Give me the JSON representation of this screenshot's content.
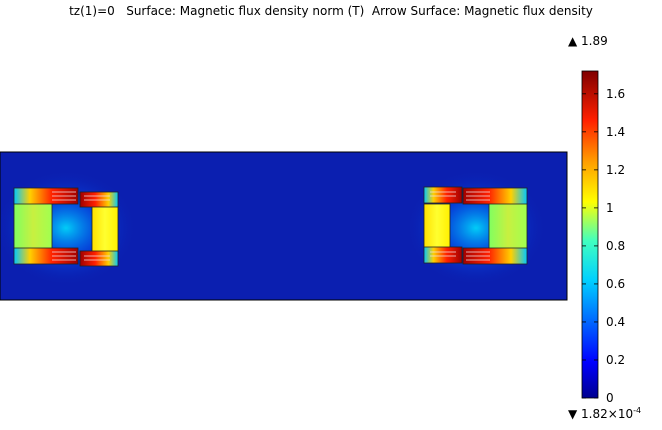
{
  "plot": {
    "title": "tz(1)=0   Surface: Magnetic flux density norm (T)  Arrow Surface: Magnetic flux density"
  },
  "colorbar": {
    "max_label": "▲ 1.89",
    "min_label": "▼ 1.82×10",
    "min_exponent": "-4",
    "ticks": [
      "1.6",
      "1.4",
      "1.2",
      "1",
      "0.8",
      "0.6",
      "0.4",
      "0.2",
      "0"
    ],
    "tick_values": [
      1.6,
      1.4,
      1.2,
      1.0,
      0.8,
      0.6,
      0.4,
      0.2,
      0.0
    ],
    "range": [
      0,
      1.72
    ],
    "colors": [
      "#00008f",
      "#0000ff",
      "#0080ff",
      "#00ffff",
      "#80ff80",
      "#ffff00",
      "#ff8000",
      "#ff0000",
      "#800000"
    ]
  },
  "field": {
    "background_color": "#0b1fb0"
  }
}
